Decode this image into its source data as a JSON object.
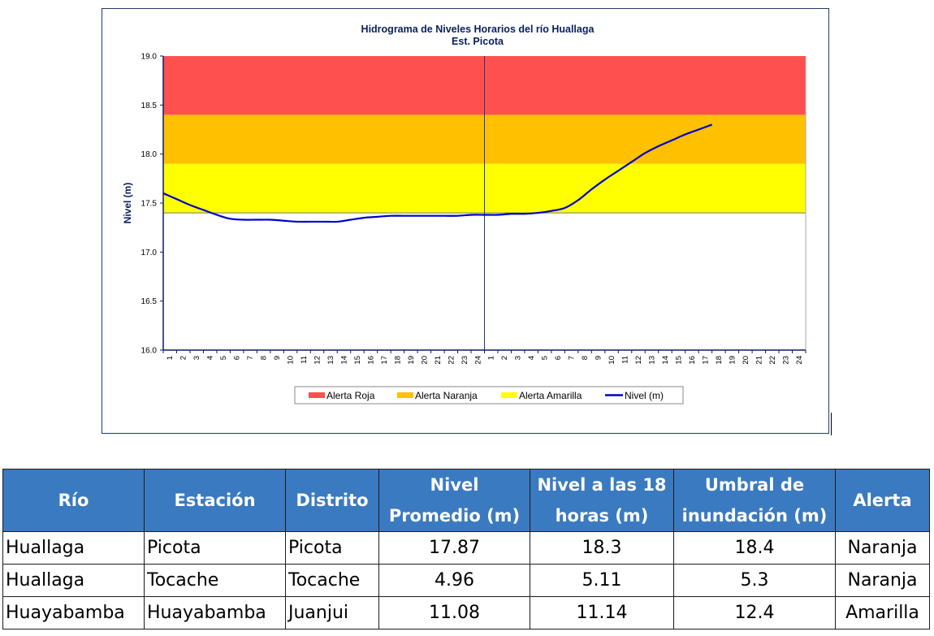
{
  "chart_data": {
    "type": "line",
    "title": "Hidrograma de Niveles Horarios del río Huallaga",
    "subtitle": "Est. Picota",
    "ylabel": "Nivel (m)",
    "xlabel": "",
    "ylim": [
      16.0,
      19.0
    ],
    "yticks": [
      "16.0",
      "16.5",
      "17.0",
      "17.5",
      "18.0",
      "18.5",
      "19.0"
    ],
    "x_ticks": [
      "1",
      "2",
      "3",
      "4",
      "5",
      "6",
      "7",
      "8",
      "9",
      "10",
      "11",
      "12",
      "13",
      "14",
      "15",
      "16",
      "17",
      "18",
      "19",
      "20",
      "21",
      "22",
      "23",
      "24",
      "1",
      "2",
      "3",
      "4",
      "5",
      "6",
      "7",
      "8",
      "9",
      "10",
      "11",
      "12",
      "13",
      "14",
      "15",
      "16",
      "17",
      "18",
      "19",
      "20",
      "21",
      "22",
      "23",
      "24"
    ],
    "day_divider_after": 24,
    "bands": [
      {
        "name": "Alerta Roja",
        "from": 18.4,
        "to": 19.0,
        "color": "#ff5050"
      },
      {
        "name": "Alerta Naranja",
        "from": 17.9,
        "to": 18.4,
        "color": "#ffc000"
      },
      {
        "name": "Alerta Amarilla",
        "from": 17.4,
        "to": 17.9,
        "color": "#ffff00"
      }
    ],
    "series": [
      {
        "name": "Nivel (m)",
        "color": "#0000cc",
        "values": [
          17.6,
          17.54,
          17.48,
          17.43,
          17.38,
          17.34,
          17.33,
          17.33,
          17.33,
          17.32,
          17.31,
          17.31,
          17.31,
          17.31,
          17.33,
          17.35,
          17.36,
          17.37,
          17.37,
          17.37,
          17.37,
          17.37,
          17.37,
          17.38,
          17.38,
          17.38,
          17.39,
          17.39,
          17.4,
          17.42,
          17.45,
          17.53,
          17.64,
          17.74,
          17.83,
          17.92,
          18.01,
          18.08,
          18.14,
          18.2,
          18.25,
          18.3
        ]
      }
    ],
    "legend": {
      "position": "bottom",
      "items": [
        "Alerta Roja",
        "Alerta Naranja",
        "Alerta Amarilla",
        "Nivel (m)"
      ]
    },
    "grid": false
  },
  "table": {
    "headers": [
      [
        "Río"
      ],
      [
        "Estación"
      ],
      [
        "Distrito"
      ],
      [
        "Nivel",
        "Promedio (m)"
      ],
      [
        "Nivel a las 18",
        "horas (m)"
      ],
      [
        "Umbral de",
        "inundación (m)"
      ],
      [
        "Alerta"
      ]
    ],
    "rows": [
      [
        "Huallaga",
        "Picota",
        "Picota",
        "17.87",
        "18.3",
        "18.4",
        "Naranja"
      ],
      [
        "Huallaga",
        "Tocache",
        "Tocache",
        "4.96",
        "5.11",
        "5.3",
        "Naranja"
      ],
      [
        "Huayabamba",
        "Huayabamba",
        "Juanjui",
        "11.08",
        "11.14",
        "12.4",
        "Amarilla"
      ]
    ]
  }
}
